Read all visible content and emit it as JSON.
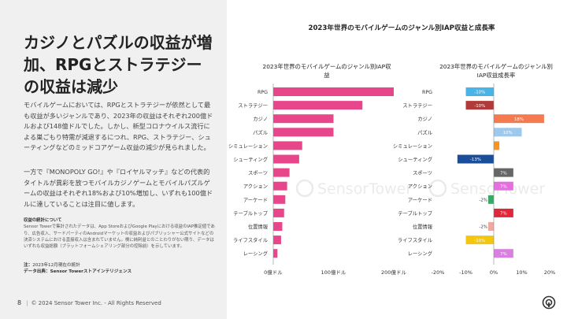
{
  "left": {
    "headline": "カジノとパズルの収益が増加、RPGとストラテジーの収益は減少",
    "para1": "モバイルゲームにおいては、RPGとストラテジーが依然として最も収益が多いジャンルであり、2023年の収益はそれぞれ200億ドルおよび148億ドルでした。しかし、新型コロナウイルス流行による巣ごもり特需が減退するにつれ、RPG、ストラテジー、シューティングなどのミッドコアゲーム収益の減少が見られました。",
    "para2": "一方で『MONOPOLY GO!』や『ロイヤルマッチ』などの代表的タイトルが異彩を放つモバイルカジノゲームとモバイルパズルゲームの収益はそれぞれ18%および10%増加し、いずれも100億ドルに達していることは注目に値します。",
    "method_title": "収益の統計について",
    "method_text": "Sensor Towerで集計されたデータは、App StoreおよびGoogle Playにおける収益のIAP推定値であり、広告収入、サードパーティのAndroidマーケットの収益およびパブリッシャー公式サイトなどの決済システムにおける直接収入は含まれていません。検に純利益とのことわりがない限り、データはいずれも収益総額（プラットフォームシェアリング部分の控除前）を示しています。",
    "note_label": "注：",
    "note_text": "2023年12月現在の統計",
    "source_label": "データ出典：",
    "source_text": "Sensor Towerストアインテリジェンス"
  },
  "footer": {
    "page": "8",
    "copyright": "© 2024 Sensor Tower Inc. - All Rights Reserved"
  },
  "watermark": "SensorTower",
  "chart_data": {
    "type": "bar",
    "title": "2023年世界のモバイルゲームのジャンル別IAP収益と成長率",
    "categories": [
      "RPG",
      "ストラテジー",
      "カジノ",
      "パズル",
      "シミュレーション",
      "シューティング",
      "スポーツ",
      "アクション",
      "アーケード",
      "テーブルトップ",
      "位置情報",
      "ライフスタイル",
      "レーシング"
    ],
    "panels": [
      {
        "subtitle": "2023年世界のモバイルゲームのジャンル別IAP収益",
        "values": [
          200,
          148,
          100,
          100,
          48,
          43,
          27,
          23,
          20,
          18,
          15,
          13,
          7
        ],
        "unit": "億ドル",
        "xlim": [
          0,
          200
        ],
        "xticks": [
          "0億ドル",
          "100億ドル",
          "200億ドル"
        ],
        "color": "#e8468a"
      },
      {
        "subtitle": "2023年世界のモバイルゲームのジャンル別IAP収益成長率",
        "values": [
          -10,
          -10,
          18,
          10,
          2,
          -13,
          7,
          7,
          -2,
          7,
          -2,
          -10,
          7
        ],
        "labels": [
          "-10%",
          "-10%",
          "18%",
          "10%",
          "2%",
          "-13%",
          "7%",
          "7%",
          "-2%",
          "7%",
          "-2%",
          "-10%",
          "7%"
        ],
        "colors": [
          "#4bb4e6",
          "#b33a3a",
          "#f47b4f",
          "#9ec9ee",
          "#f79523",
          "#1a4d9a",
          "#666666",
          "#e56fe0",
          "#3aa86a",
          "#e0263b",
          "#f0a8a3",
          "#f3c60f",
          "#d97fe0"
        ],
        "xlim": [
          -20,
          20
        ],
        "xticks": [
          "-20%",
          "-10%",
          "0%",
          "10%",
          "20%"
        ]
      }
    ]
  }
}
